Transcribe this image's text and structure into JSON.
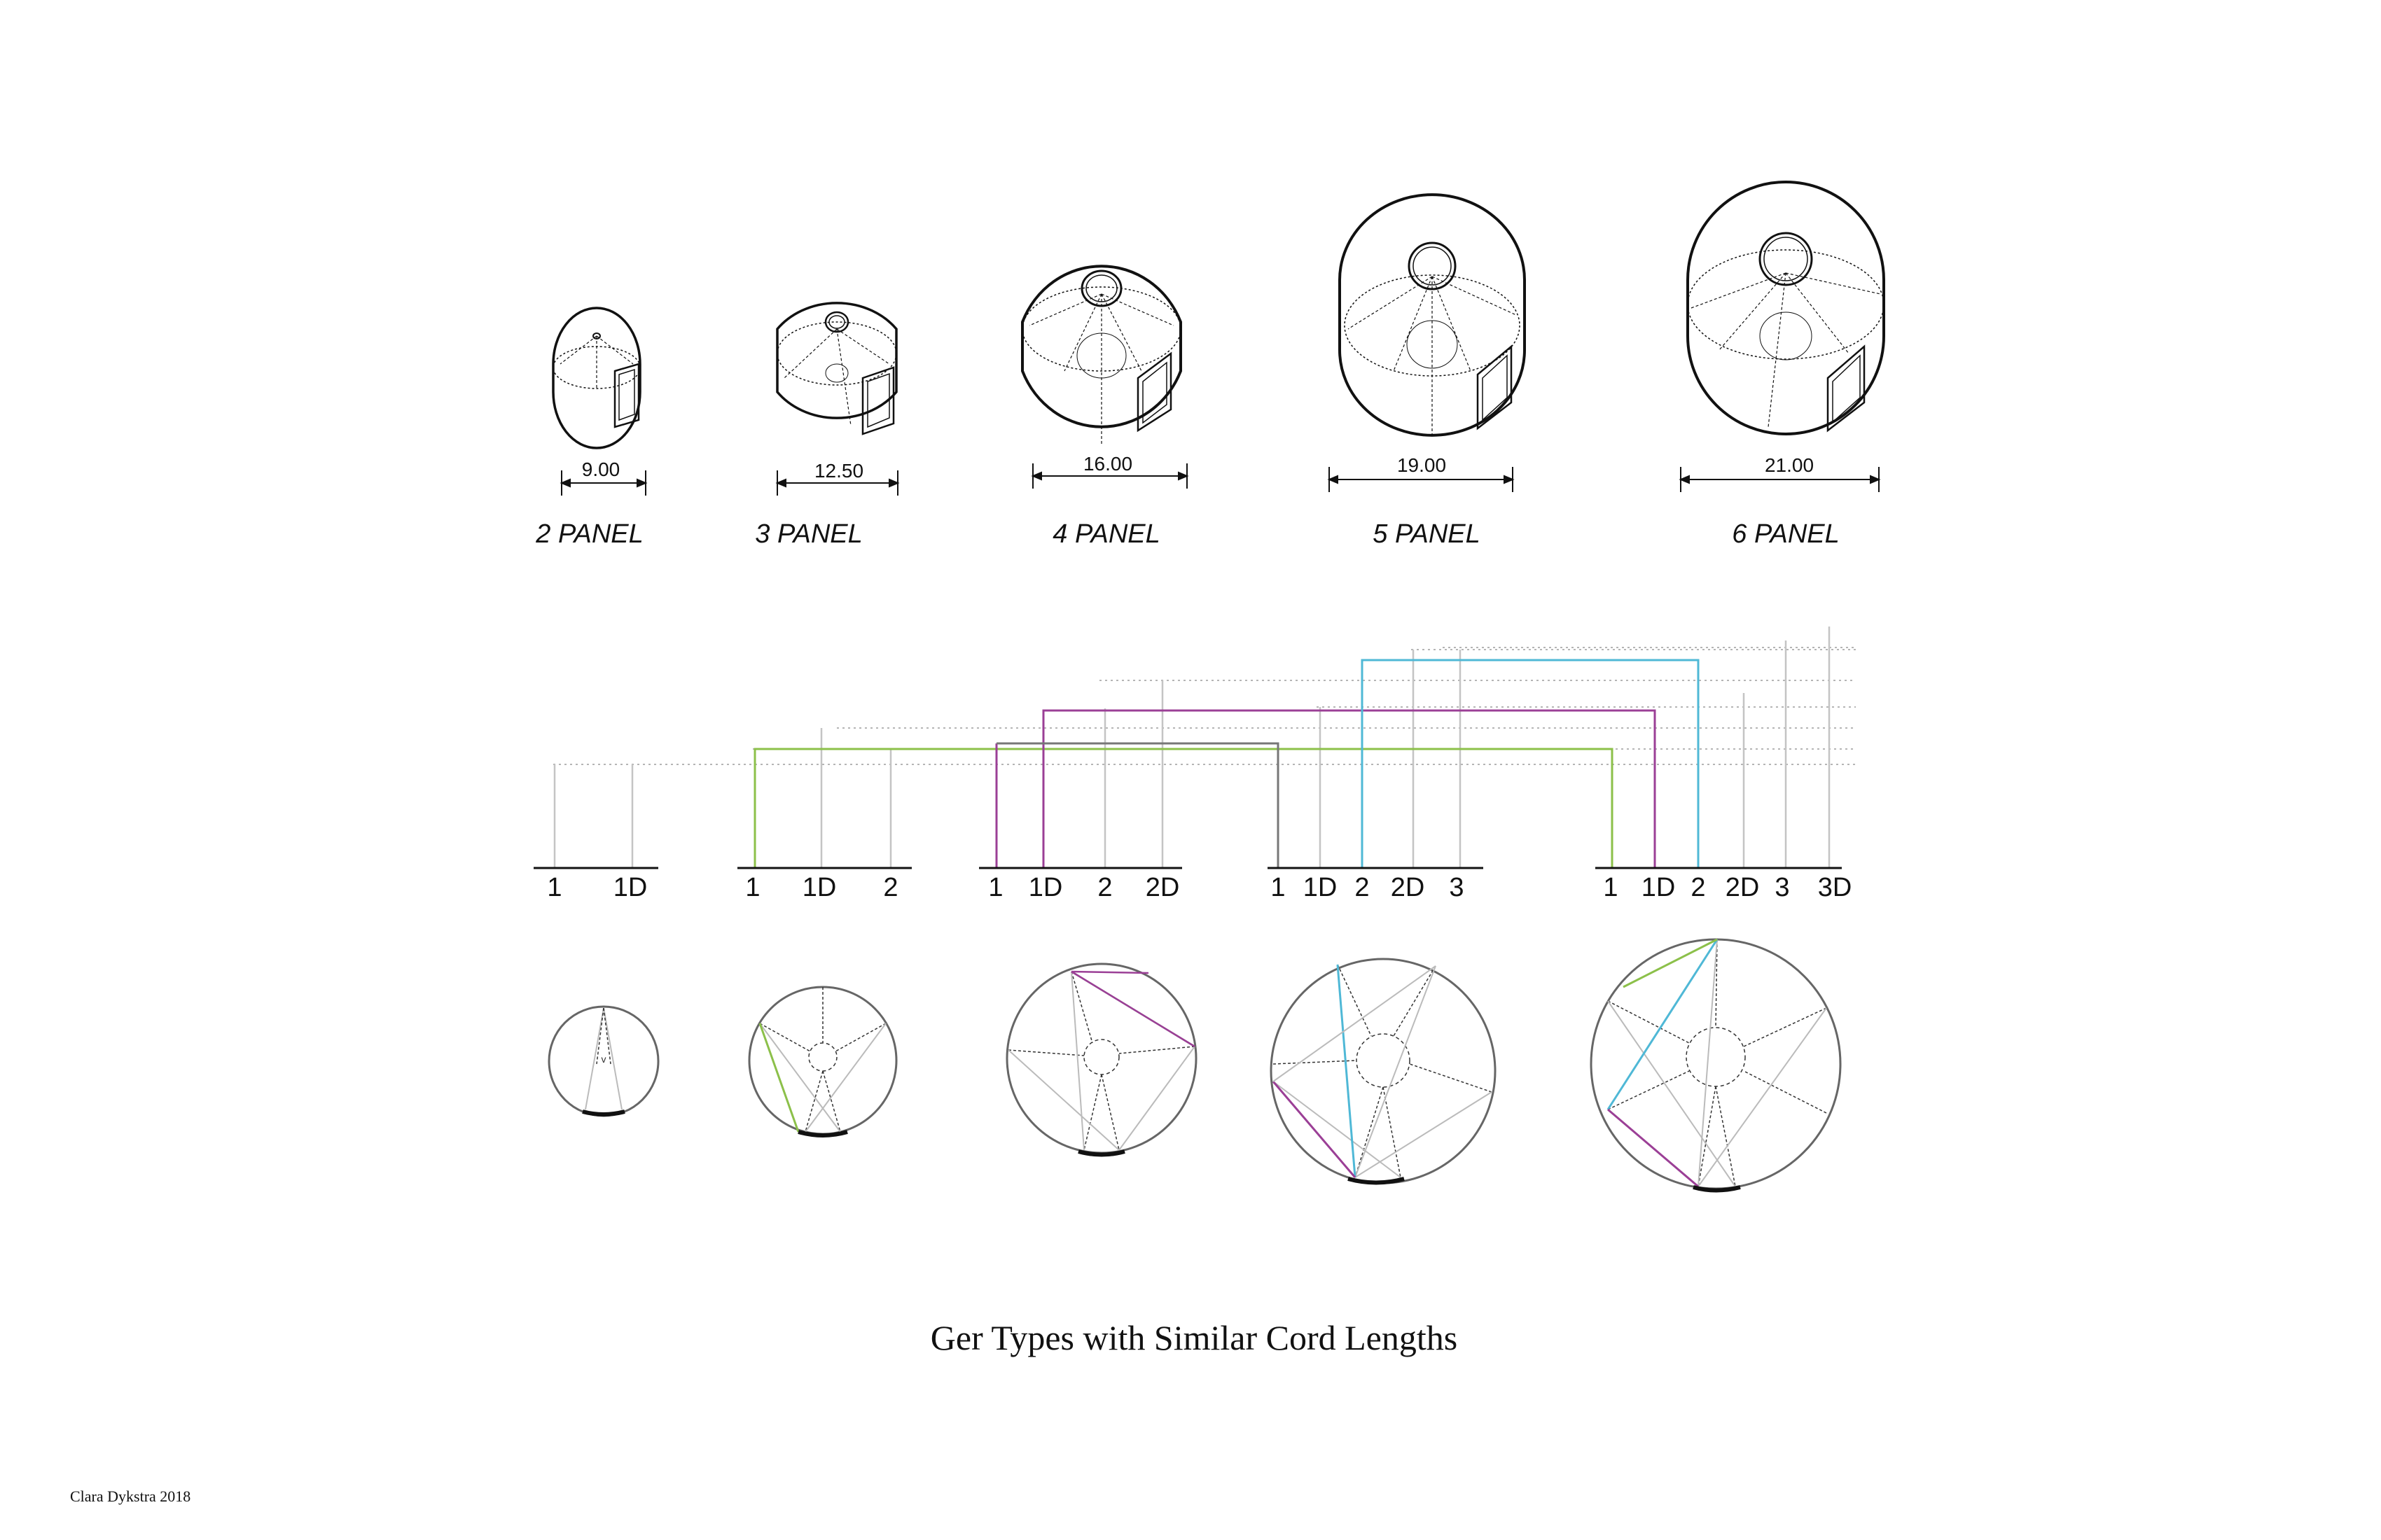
{
  "title": "Ger Types with Similar Cord Lengths",
  "credit": "Clara Dykstra 2018",
  "gers": [
    {
      "panel_label": "2 PANEL",
      "diameter": "9.00",
      "axis_labels": [
        "1",
        "1D"
      ]
    },
    {
      "panel_label": "3 PANEL",
      "diameter": "12.50",
      "axis_labels": [
        "1",
        "1D",
        "2"
      ]
    },
    {
      "panel_label": "4 PANEL",
      "diameter": "16.00",
      "axis_labels": [
        "1",
        "1D",
        "2",
        "2D"
      ]
    },
    {
      "panel_label": "5 PANEL",
      "diameter": "19.00",
      "axis_labels": [
        "1",
        "1D",
        "2",
        "2D",
        "3"
      ]
    },
    {
      "panel_label": "6 PANEL",
      "diameter": "21.00",
      "axis_labels": [
        "1",
        "1D",
        "2",
        "2D",
        "3",
        "3D"
      ]
    }
  ],
  "colors": {
    "green": "#8cc04a",
    "purple": "#9b3f96",
    "cyan": "#4fb8d6",
    "grey_line": "#bdbdbd",
    "dark_line": "#777777",
    "ink": "#111111"
  }
}
